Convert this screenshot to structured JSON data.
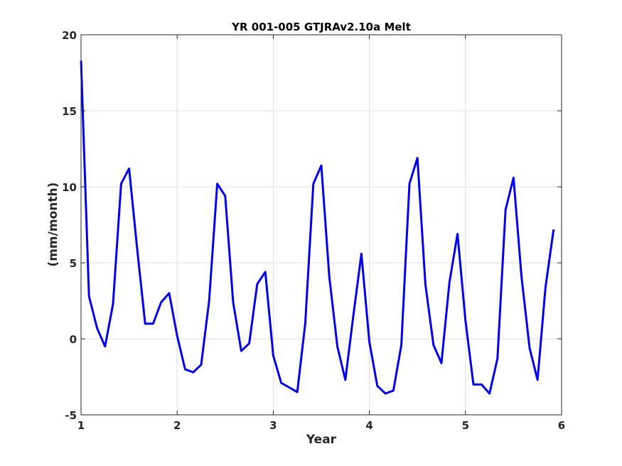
{
  "chart_data": {
    "type": "line",
    "title": "YR 001-005 GTJRAv2.10a Melt",
    "xlabel": "Year",
    "ylabel": "(mm/month)",
    "xlim": [
      1,
      6
    ],
    "ylim": [
      -5,
      20
    ],
    "xticks": [
      "1",
      "2",
      "3",
      "4",
      "5",
      "6"
    ],
    "yticks": [
      "-5",
      "0",
      "5",
      "10",
      "15",
      "20"
    ],
    "grid": true,
    "series": [
      {
        "color": "#0000ee",
        "x": [
          1.0,
          1.083,
          1.167,
          1.25,
          1.333,
          1.417,
          1.5,
          1.583,
          1.667,
          1.75,
          1.833,
          1.917,
          2.0,
          2.083,
          2.167,
          2.25,
          2.333,
          2.417,
          2.5,
          2.583,
          2.667,
          2.75,
          2.833,
          2.917,
          3.0,
          3.083,
          3.167,
          3.25,
          3.333,
          3.417,
          3.5,
          3.583,
          3.667,
          3.75,
          3.833,
          3.917,
          4.0,
          4.083,
          4.167,
          4.25,
          4.333,
          4.417,
          4.5,
          4.583,
          4.667,
          4.75,
          4.833,
          4.917,
          5.0,
          5.083,
          5.167,
          5.25,
          5.333,
          5.417,
          5.5,
          5.583,
          5.667,
          5.75,
          5.833,
          5.917
        ],
        "y": [
          18.3,
          2.8,
          0.7,
          -0.5,
          2.3,
          10.2,
          11.2,
          6.0,
          1.0,
          1.0,
          2.4,
          3.0,
          0.2,
          -2.0,
          -2.2,
          -1.7,
          2.5,
          10.2,
          9.4,
          2.4,
          -0.8,
          -0.3,
          3.6,
          4.4,
          -1.1,
          -2.9,
          -3.2,
          -3.5,
          1.0,
          10.2,
          11.4,
          4.1,
          -0.5,
          -2.7,
          1.5,
          5.6,
          -0.2,
          -3.1,
          -3.6,
          -3.4,
          -0.4,
          10.2,
          11.9,
          3.6,
          -0.4,
          -1.6,
          3.7,
          6.9,
          1.2,
          -3.0,
          -3.0,
          -3.6,
          -1.3,
          8.5,
          10.6,
          4.1,
          -0.6,
          -2.7,
          3.4,
          7.2
        ]
      }
    ]
  }
}
